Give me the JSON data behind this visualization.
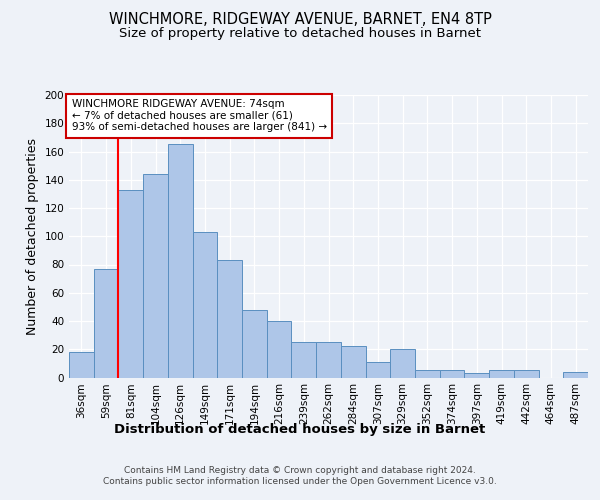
{
  "title1": "WINCHMORE, RIDGEWAY AVENUE, BARNET, EN4 8TP",
  "title2": "Size of property relative to detached houses in Barnet",
  "xlabel": "Distribution of detached houses by size in Barnet",
  "ylabel": "Number of detached properties",
  "categories": [
    "36sqm",
    "59sqm",
    "81sqm",
    "104sqm",
    "126sqm",
    "149sqm",
    "171sqm",
    "194sqm",
    "216sqm",
    "239sqm",
    "262sqm",
    "284sqm",
    "307sqm",
    "329sqm",
    "352sqm",
    "374sqm",
    "397sqm",
    "419sqm",
    "442sqm",
    "464sqm",
    "487sqm"
  ],
  "values": [
    18,
    77,
    133,
    144,
    165,
    103,
    83,
    48,
    40,
    25,
    25,
    22,
    11,
    20,
    5,
    5,
    3,
    5,
    5,
    0,
    4
  ],
  "bar_color": "#aec6e8",
  "bar_edge_color": "#5a8fc0",
  "red_line_x": 1.5,
  "annotation_text": "WINCHMORE RIDGEWAY AVENUE: 74sqm\n← 7% of detached houses are smaller (61)\n93% of semi-detached houses are larger (841) →",
  "annotation_box_color": "#ffffff",
  "annotation_box_edge_color": "#cc0000",
  "ylim": [
    0,
    200
  ],
  "yticks": [
    0,
    20,
    40,
    60,
    80,
    100,
    120,
    140,
    160,
    180,
    200
  ],
  "footer1": "Contains HM Land Registry data © Crown copyright and database right 2024.",
  "footer2": "Contains public sector information licensed under the Open Government Licence v3.0.",
  "bg_color": "#eef2f8",
  "plot_bg_color": "#eef2f8",
  "grid_color": "#ffffff",
  "title_fontsize": 10.5,
  "subtitle_fontsize": 9.5,
  "tick_fontsize": 7.5,
  "ylabel_fontsize": 9,
  "xlabel_fontsize": 9.5,
  "annotation_fontsize": 7.5,
  "footer_fontsize": 6.5
}
